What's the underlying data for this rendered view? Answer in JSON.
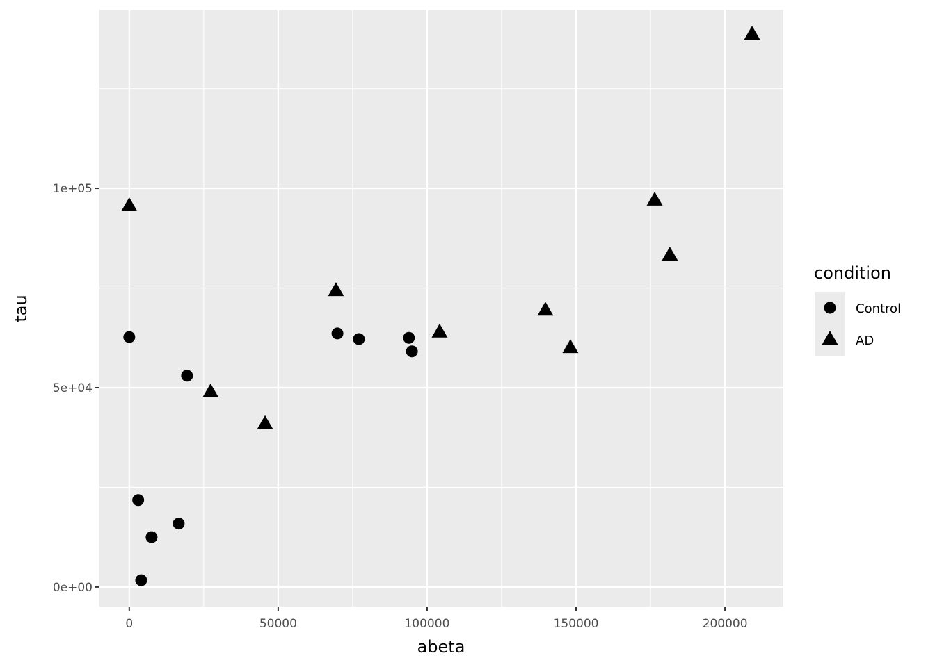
{
  "chart_data": {
    "type": "scatter",
    "title": "",
    "xlabel": "abeta",
    "ylabel": "tau",
    "xlim": [
      -10000,
      219600
    ],
    "ylim": [
      -4900,
      144800
    ],
    "x_ticks": [
      0,
      50000,
      100000,
      150000,
      200000
    ],
    "x_tick_labels": [
      "0",
      "50000",
      "100000",
      "150000",
      "200000"
    ],
    "y_ticks": [
      0,
      50000,
      100000
    ],
    "y_tick_labels": [
      "0e+00",
      "5e+04",
      "1e+05"
    ],
    "grid": true,
    "legend": {
      "title": "condition",
      "placement": "right",
      "entries": [
        "Control",
        "AD"
      ]
    },
    "series": [
      {
        "name": "Control",
        "shape": "circle",
        "color": "#000000",
        "points": [
          [
            0,
            62700
          ],
          [
            3000,
            21800
          ],
          [
            4000,
            1700
          ],
          [
            7500,
            12500
          ],
          [
            16600,
            15900
          ],
          [
            19400,
            53000
          ],
          [
            69900,
            63600
          ],
          [
            77100,
            62200
          ],
          [
            93900,
            62500
          ],
          [
            94900,
            59100
          ]
        ]
      },
      {
        "name": "AD",
        "shape": "triangle",
        "color": "#000000",
        "points": [
          [
            0,
            95500
          ],
          [
            27300,
            48800
          ],
          [
            45600,
            40800
          ],
          [
            69400,
            74200
          ],
          [
            104200,
            63800
          ],
          [
            139700,
            69300
          ],
          [
            148100,
            59900
          ],
          [
            176400,
            96900
          ],
          [
            181500,
            83100
          ],
          [
            209100,
            138500
          ]
        ]
      }
    ],
    "colors": {
      "panel": "#ebebeb",
      "grid": "#ffffff"
    }
  }
}
